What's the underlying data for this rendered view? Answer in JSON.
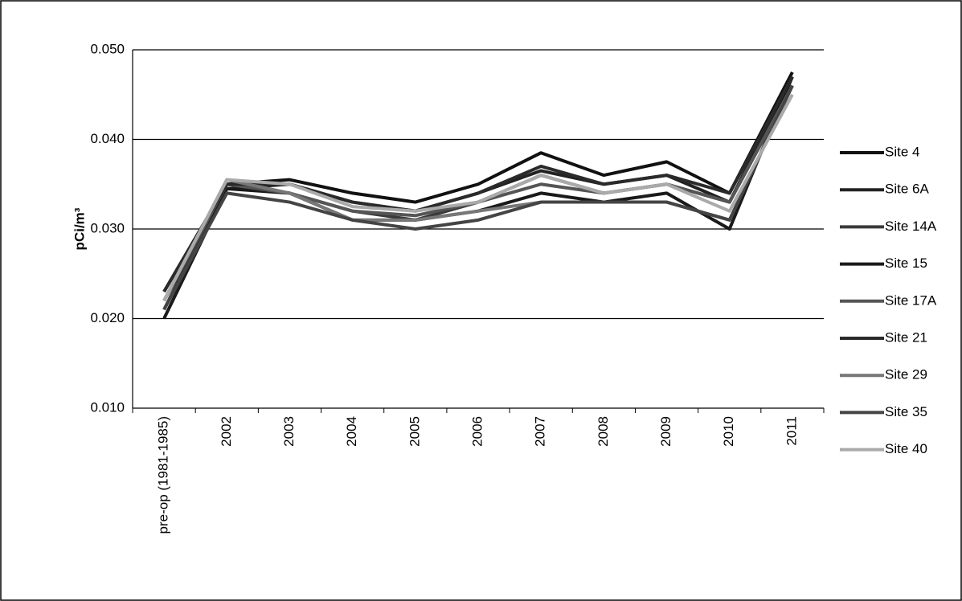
{
  "chart_data": {
    "type": "line",
    "y_label": "pCi/m³",
    "categories": [
      "pre-op  (1981-1985)",
      "2002",
      "2003",
      "2004",
      "2005",
      "2006",
      "2007",
      "2008",
      "2009",
      "2010",
      "2011"
    ],
    "ylim": [
      0.01,
      0.05
    ],
    "yticks": [
      {
        "value": 0.01,
        "label": "0.010"
      },
      {
        "value": 0.02,
        "label": "0.020"
      },
      {
        "value": 0.03,
        "label": "0.030"
      },
      {
        "value": 0.04,
        "label": "0.040"
      },
      {
        "value": 0.05,
        "label": "0.050"
      }
    ],
    "grid": true,
    "legend": "right",
    "series": [
      {
        "name": "Site 4",
        "color": "#111111",
        "values": [
          0.023,
          0.035,
          0.0355,
          0.034,
          0.033,
          0.035,
          0.0385,
          0.036,
          0.0375,
          0.034,
          0.0475
        ]
      },
      {
        "name": "Site 6A",
        "color": "#222222",
        "values": [
          0.022,
          0.0345,
          0.035,
          0.033,
          0.032,
          0.034,
          0.0365,
          0.035,
          0.036,
          0.033,
          0.047
        ]
      },
      {
        "name": "Site 14A",
        "color": "#3a3a3a",
        "values": [
          0.021,
          0.035,
          0.034,
          0.032,
          0.031,
          0.033,
          0.036,
          0.034,
          0.035,
          0.033,
          0.046
        ]
      },
      {
        "name": "Site 15",
        "color": "#1a1a1a",
        "values": [
          0.02,
          0.0345,
          0.034,
          0.031,
          0.031,
          0.032,
          0.034,
          0.033,
          0.034,
          0.03,
          0.047
        ]
      },
      {
        "name": "Site 17A",
        "color": "#555555",
        "values": [
          0.022,
          0.035,
          0.034,
          0.032,
          0.0315,
          0.033,
          0.035,
          0.034,
          0.035,
          0.033,
          0.046
        ]
      },
      {
        "name": "Site 21",
        "color": "#2a2a2a",
        "values": [
          0.023,
          0.035,
          0.035,
          0.033,
          0.032,
          0.034,
          0.037,
          0.035,
          0.036,
          0.034,
          0.047
        ]
      },
      {
        "name": "Site 29",
        "color": "#777777",
        "values": [
          0.022,
          0.0355,
          0.034,
          0.031,
          0.031,
          0.032,
          0.033,
          0.033,
          0.033,
          0.031,
          0.046
        ]
      },
      {
        "name": "Site 35",
        "color": "#444444",
        "values": [
          0.021,
          0.034,
          0.033,
          0.031,
          0.03,
          0.031,
          0.033,
          0.033,
          0.033,
          0.031,
          0.046
        ]
      },
      {
        "name": "Site 40",
        "color": "#aaaaaa",
        "values": [
          0.022,
          0.0355,
          0.035,
          0.0325,
          0.032,
          0.033,
          0.036,
          0.034,
          0.035,
          0.032,
          0.045
        ]
      }
    ]
  }
}
